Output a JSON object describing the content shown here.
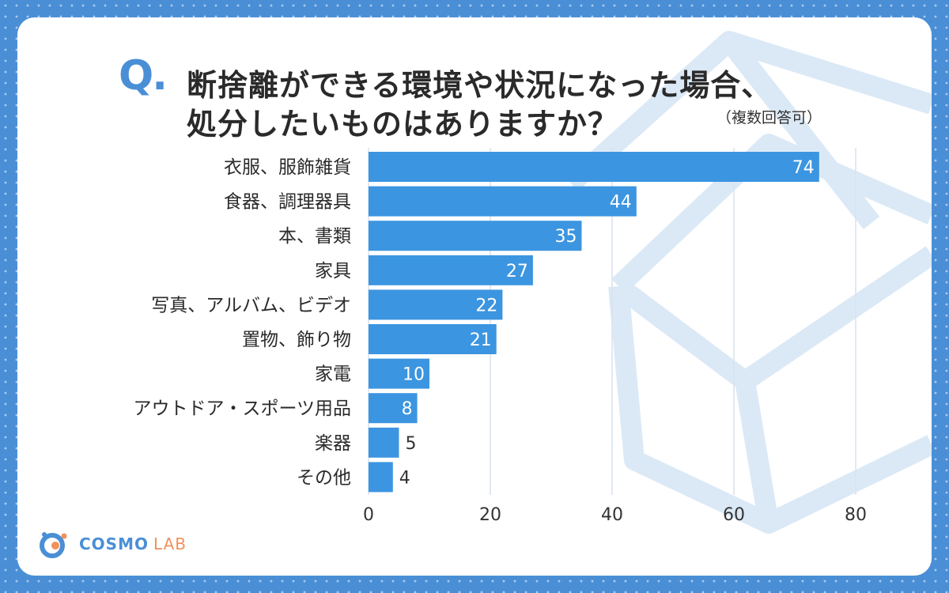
{
  "question": {
    "marker": "Q.",
    "line1": "断捨離ができる環境や状況になった場合、",
    "line2": "処分したいものはありますか？",
    "note": "（複数回答可）"
  },
  "logo": {
    "brand": "COSMO",
    "sub": "LAB"
  },
  "colors": {
    "bar": "#3c95e0",
    "frame": "#4a8fd6",
    "grid": "#d9e2ee",
    "logo_accent": "#f0915a"
  },
  "chart_data": {
    "type": "bar",
    "orientation": "horizontal",
    "categories": [
      "衣服、服飾雑貨",
      "食器、調理器具",
      "本、書類",
      "家具",
      "写真、アルバム、ビデオ",
      "置物、飾り物",
      "家電",
      "アウトドア・スポーツ用品",
      "楽器",
      "その他"
    ],
    "values": [
      74,
      44,
      35,
      27,
      22,
      21,
      10,
      8,
      5,
      4
    ],
    "xticks": [
      0,
      20,
      40,
      60,
      80
    ],
    "xlim": [
      0,
      80
    ],
    "grid": true,
    "data_labels": true
  }
}
